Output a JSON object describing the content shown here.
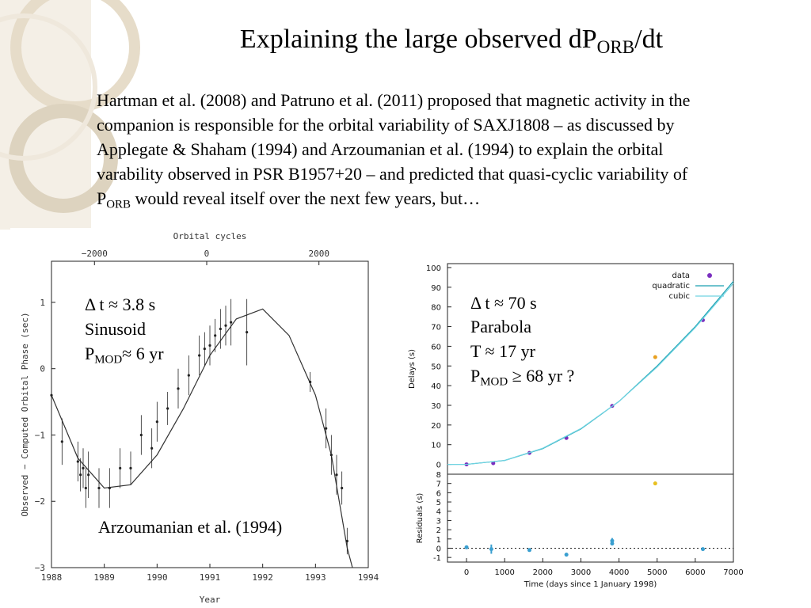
{
  "title": {
    "parts": [
      "Explaining the large observed dP",
      "ORB",
      "/dt"
    ]
  },
  "paragraph": {
    "lines": [
      "Hartman et al. (2008) and Patruno et al. (2011) proposed that magnetic activity in the",
      "companion is responsible for the orbital variability of SAXJ1808 – as discussed by",
      "Applegate & Shaham (1994) and Arzoumanian et al. (1994) to explain the orbital",
      "varability observed in PSR B1957+20 – and predicted that  quasi-cyclic variability of"
    ],
    "last_line": [
      "P",
      "ORB",
      " would reveal itself over the next few years, but…"
    ]
  },
  "chart_data": [
    {
      "type": "scatter",
      "x2label": "Orbital cycles",
      "xlabel": "Year",
      "ylabel": "Observed − Computed Orbital Phase (sec)",
      "xlim": [
        1988,
        1994
      ],
      "xticks": [
        1988,
        1989,
        1990,
        1991,
        1992,
        1993,
        1994
      ],
      "x2lim": [
        -2766,
        2879
      ],
      "x2ticks": [
        {
          "value": -2000,
          "label": "−2000"
        },
        0,
        2000
      ],
      "ylim": [
        -3,
        1.62
      ],
      "yticks": [
        {
          "value": -3,
          "label": "−3"
        },
        {
          "value": -2,
          "label": "−2"
        },
        {
          "value": -1,
          "label": "−1"
        },
        0,
        1
      ],
      "series": [
        {
          "color": "#222222",
          "x": [
            1988.0,
            1988.2,
            1988.5,
            1988.55,
            1988.6,
            1988.65,
            1988.7,
            1988.9,
            1989.1,
            1989.3,
            1989.5,
            1989.7,
            1989.9,
            1990.0,
            1990.2,
            1990.4,
            1990.6,
            1990.8,
            1990.9,
            1991.0,
            1991.1,
            1991.2,
            1991.3,
            1991.4,
            1991.7,
            1992.9,
            1993.2,
            1993.3,
            1993.4,
            1993.5,
            1993.6
          ],
          "values": [
            -0.4,
            -1.1,
            -1.4,
            -1.6,
            -1.5,
            -1.8,
            -1.6,
            -1.8,
            -1.8,
            -1.5,
            -1.5,
            -1.0,
            -1.2,
            -0.8,
            -0.6,
            -0.3,
            -0.1,
            0.2,
            0.3,
            0.35,
            0.5,
            0.6,
            0.65,
            0.7,
            0.55,
            -0.2,
            -0.9,
            -1.3,
            -1.6,
            -1.8,
            -2.6
          ],
          "errors": [
            0.3,
            0.35,
            0.3,
            0.25,
            0.3,
            0.3,
            0.35,
            0.3,
            0.3,
            0.3,
            0.25,
            0.3,
            0.3,
            0.3,
            0.25,
            0.3,
            0.3,
            0.3,
            0.25,
            0.3,
            0.25,
            0.3,
            0.3,
            0.35,
            0.5,
            0.15,
            0.3,
            0.3,
            0.3,
            0.25,
            0.2
          ]
        }
      ],
      "model": {
        "color": "#333333",
        "x": [
          1988.0,
          1988.5,
          1989.0,
          1989.5,
          1990.0,
          1990.5,
          1991.0,
          1991.5,
          1992.0,
          1992.5,
          1993.0,
          1993.3,
          1993.6,
          1993.7
        ],
        "values": [
          -0.4,
          -1.35,
          -1.8,
          -1.75,
          -1.3,
          -0.6,
          0.2,
          0.75,
          0.9,
          0.5,
          -0.4,
          -1.3,
          -2.7,
          -3.0
        ]
      },
      "annotations": [
        "Δ t ≈ 3.8 s",
        "Sinusoid",
        [
          "P",
          "MOD",
          "≈ 6 yr"
        ],
        "Arzoumanian et al. (1994)"
      ]
    },
    {
      "type": "scatter",
      "ylabel": "Delays (s)",
      "xlim": [
        -500,
        7000
      ],
      "ylim": [
        -5,
        102
      ],
      "yticks": [
        0,
        10,
        20,
        30,
        40,
        50,
        60,
        70,
        80,
        90,
        100
      ],
      "legend": "upper right",
      "series": [
        {
          "name": "data",
          "color": "#7b2fbf",
          "x": [
            0,
            700,
            1650,
            2620,
            3820,
            4950,
            6200
          ],
          "values": [
            0,
            0.6,
            5.8,
            13.4,
            29.7,
            54.5,
            73.3
          ],
          "point_colors": [
            "#7b2fbf",
            "#7b2fbf",
            "#7b2fbf",
            "#7b2fbf",
            "#7b2fbf",
            "#e8a020",
            "#7b2fbf"
          ]
        },
        {
          "name": "quadratic",
          "color": "#1a9fb0",
          "x": [
            -500,
            0,
            1000,
            2000,
            3000,
            4000,
            5000,
            6000,
            7000
          ],
          "values": [
            0,
            0,
            2,
            8,
            18,
            32,
            50,
            70,
            93
          ]
        },
        {
          "name": "cubic",
          "color": "#70d4e2",
          "x": [
            -500,
            0,
            1000,
            2000,
            3000,
            4000,
            5000,
            6000,
            7000
          ],
          "values": [
            0,
            0,
            2,
            8.2,
            18.2,
            32,
            49.5,
            69.5,
            92
          ]
        }
      ],
      "annotations": [
        "Δ t ≈ 70 s",
        "Parabola",
        "T ≈ 17 yr",
        [
          "P",
          "MOD",
          " ≥ 68 yr ?"
        ]
      ]
    },
    {
      "type": "scatter",
      "ylabel": "Residuals (s)",
      "xlabel": "Time (days since 1 January 1998)",
      "xlim": [
        -500,
        7000
      ],
      "xticks": [
        0,
        1000,
        2000,
        3000,
        4000,
        5000,
        6000,
        7000
      ],
      "ylim": [
        -1.5,
        8
      ],
      "yticks": [
        -1,
        0,
        1,
        2,
        3,
        4,
        5,
        6,
        7,
        8
      ],
      "zero_line": true,
      "series": [
        {
          "color": "#3a9fd0",
          "x": [
            0,
            650,
            1650,
            2620,
            3820,
            3820,
            4950,
            6200
          ],
          "values": [
            0.1,
            -0.1,
            -0.2,
            -0.7,
            0.8,
            0.5,
            7.0,
            -0.1
          ],
          "errors": [
            0.1,
            0.5,
            0.1,
            0.2,
            0.3,
            0.1,
            0.1,
            0.1
          ],
          "point_colors": [
            "#3a9fd0",
            "#3a9fd0",
            "#3a9fd0",
            "#3a9fd0",
            "#3a9fd0",
            "#3a9fd0",
            "#e8c020",
            "#3a9fd0"
          ]
        }
      ]
    }
  ]
}
